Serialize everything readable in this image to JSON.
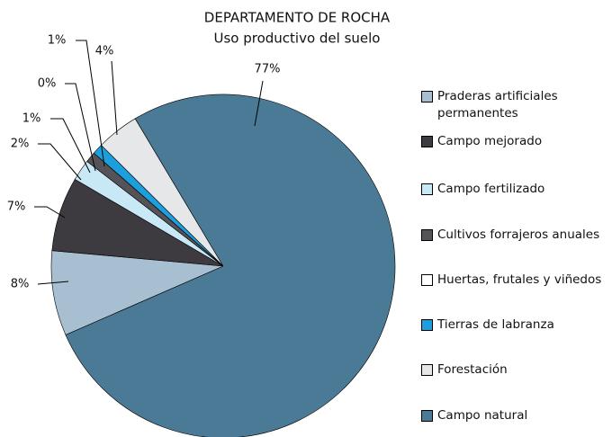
{
  "chart_data": {
    "type": "pie",
    "title": "DEPARTAMENTO DE ROCHA",
    "subtitle": "Uso productivo del suelo",
    "categories": [
      "Praderas artificiales permanentes",
      "Campo mejorado",
      "Campo fertilizado",
      "Cultivos forrajeros anuales",
      "Huertas, frutales y viñedos",
      "Tierras de labranza",
      "Forestación",
      "Campo natural"
    ],
    "values": [
      8,
      7,
      2,
      1,
      0,
      1,
      4,
      77
    ],
    "value_labels": [
      "8%",
      "7%",
      "2%",
      "1%",
      "0%",
      "1%",
      "4%",
      "77%"
    ],
    "colors": [
      "#a7bfd0",
      "#3d3a40",
      "#c9e8f6",
      "#555258",
      "#ffffff",
      "#1c9fdc",
      "#e6e7e9",
      "#4b7a96"
    ]
  }
}
